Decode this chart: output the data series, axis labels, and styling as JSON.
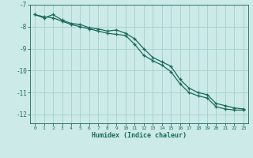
{
  "xlabel": "Humidex (Indice chaleur)",
  "bg_color": "#cceae7",
  "grid_color": "#aad4d0",
  "line_color": "#1a6b5a",
  "xlim": [
    -0.5,
    23.5
  ],
  "ylim": [
    -12.4,
    -7.0
  ],
  "yticks": [
    -7,
    -8,
    -9,
    -10,
    -11,
    -12
  ],
  "xticks": [
    0,
    1,
    2,
    3,
    4,
    5,
    6,
    7,
    8,
    9,
    10,
    11,
    12,
    13,
    14,
    15,
    16,
    17,
    18,
    19,
    20,
    21,
    22,
    23
  ],
  "line1_x": [
    0,
    1,
    2,
    3,
    4,
    5,
    6,
    7,
    8,
    9,
    10,
    11,
    12,
    13,
    14,
    15,
    16,
    17,
    18,
    19,
    20,
    21,
    22,
    23
  ],
  "line1_y": [
    -7.45,
    -7.6,
    -7.45,
    -7.7,
    -7.85,
    -7.9,
    -8.05,
    -8.1,
    -8.2,
    -8.15,
    -8.3,
    -8.55,
    -9.0,
    -9.4,
    -9.6,
    -9.8,
    -10.4,
    -10.8,
    -11.0,
    -11.1,
    -11.5,
    -11.6,
    -11.7,
    -11.75
  ],
  "line2_x": [
    0,
    1,
    2,
    3,
    4,
    5,
    6,
    7,
    8,
    9,
    10,
    11,
    12,
    13,
    14,
    15,
    16,
    17,
    18,
    19,
    20,
    21,
    22,
    23
  ],
  "line2_y": [
    -7.45,
    -7.55,
    -7.6,
    -7.75,
    -7.9,
    -8.0,
    -8.1,
    -8.2,
    -8.3,
    -8.35,
    -8.4,
    -8.8,
    -9.3,
    -9.55,
    -9.75,
    -10.05,
    -10.6,
    -11.0,
    -11.15,
    -11.25,
    -11.65,
    -11.75,
    -11.8,
    -11.8
  ]
}
